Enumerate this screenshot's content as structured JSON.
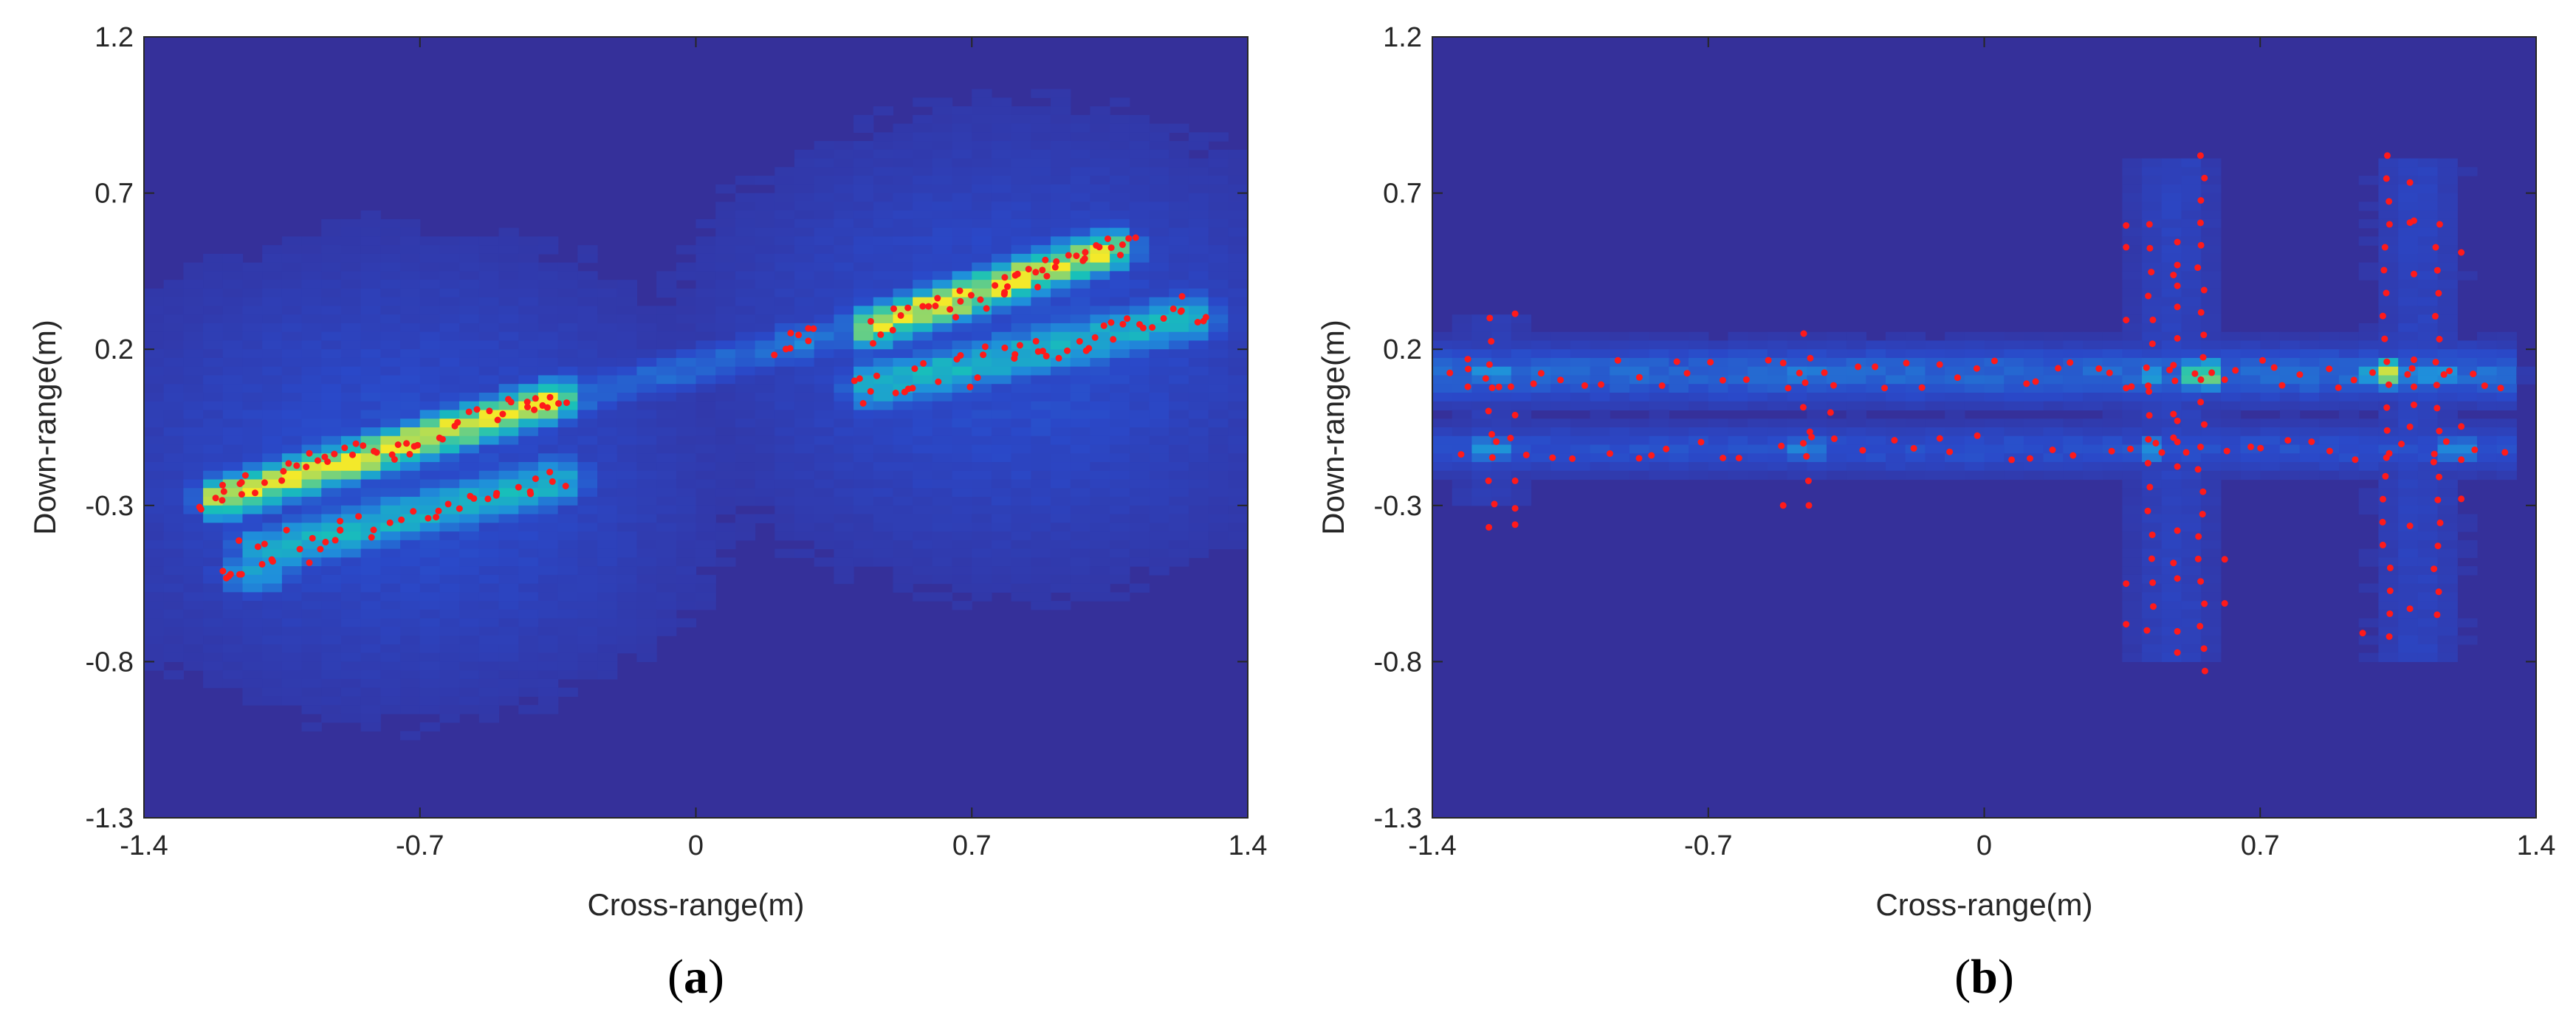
{
  "colors": {
    "background": "#35309a",
    "low": "#2a49c9",
    "mid": "#1f8fdb",
    "high": "#18c0b9",
    "peak": "#f3e92a",
    "points": "#ff1a1a"
  },
  "chart_data": [
    {
      "type": "heatmap",
      "caption_open": "(",
      "caption_letter": "a",
      "caption_close": ")",
      "xlabel": "Cross-range(m)",
      "ylabel": "Down-range(m)",
      "xlim": [
        -1.4,
        1.4
      ],
      "ylim": [
        -1.3,
        1.2
      ],
      "xticks": [
        -1.4,
        -0.7,
        0,
        0.7,
        1.4
      ],
      "xtick_labels": [
        "-1.4",
        "-0.7",
        "0",
        "0.7",
        "1.4"
      ],
      "yticks": [
        1.2,
        0.7,
        0.2,
        -0.3,
        -0.8,
        -1.3
      ],
      "ytick_labels": [
        "1.2",
        "0.7",
        "0.2",
        "-0.3",
        "-0.8",
        "-1.3"
      ],
      "intensity_features": [
        {
          "kind": "segment",
          "x1": -1.2,
          "y1": -0.28,
          "x2": -0.35,
          "y2": 0.04,
          "width": 0.05,
          "peak": 1.0
        },
        {
          "kind": "segment",
          "x1": -1.1,
          "y1": -0.45,
          "x2": -0.35,
          "y2": -0.22,
          "width": 0.06,
          "peak": 0.62
        },
        {
          "kind": "segment",
          "x1": 0.45,
          "y1": 0.27,
          "x2": 1.05,
          "y2": 0.52,
          "width": 0.05,
          "peak": 1.0
        },
        {
          "kind": "segment",
          "x1": 0.45,
          "y1": 0.08,
          "x2": 1.25,
          "y2": 0.3,
          "width": 0.06,
          "peak": 0.62
        },
        {
          "kind": "segment",
          "x1": -0.35,
          "y1": 0.04,
          "x2": 0.45,
          "y2": 0.27,
          "width": 0.05,
          "peak": 0.32
        },
        {
          "kind": "blob",
          "x": -1.12,
          "y": -0.52,
          "rx": 0.07,
          "ry": 0.05,
          "peak": 0.55
        },
        {
          "kind": "blob",
          "x": 0.25,
          "y": 0.22,
          "rx": 0.06,
          "ry": 0.05,
          "peak": 0.45
        },
        {
          "kind": "blob",
          "x": -0.75,
          "y": -0.2,
          "rx": 0.55,
          "ry": 0.5,
          "peak": 0.22
        },
        {
          "kind": "blob",
          "x": 0.8,
          "y": 0.2,
          "rx": 0.55,
          "ry": 0.5,
          "peak": 0.22
        }
      ],
      "point_groups": [
        {
          "x1": -1.25,
          "y1": -0.28,
          "x2": -0.33,
          "y2": 0.06,
          "n": 34,
          "spread": 0.035
        },
        {
          "x1": -1.15,
          "y1": -0.45,
          "x2": -0.33,
          "y2": -0.2,
          "n": 26,
          "spread": 0.045
        },
        {
          "x1": 0.45,
          "y1": 0.27,
          "x2": 1.12,
          "y2": 0.55,
          "n": 28,
          "spread": 0.035
        },
        {
          "x1": 0.4,
          "y1": 0.06,
          "x2": 1.3,
          "y2": 0.32,
          "n": 30,
          "spread": 0.045
        },
        {
          "x1": 0.2,
          "y1": 0.2,
          "x2": 0.3,
          "y2": 0.26,
          "n": 5,
          "spread": 0.02
        },
        {
          "x1": -1.2,
          "y1": -0.55,
          "x2": -1.08,
          "y2": -0.48,
          "n": 5,
          "spread": 0.02
        }
      ]
    },
    {
      "type": "heatmap",
      "caption_open": "(",
      "caption_letter": "b",
      "caption_close": ")",
      "xlabel": "Cross-range(m)",
      "ylabel": "Down-range(m)",
      "xlim": [
        -1.4,
        1.4
      ],
      "ylim": [
        -1.3,
        1.2
      ],
      "xticks": [
        -1.4,
        -0.7,
        0,
        0.7,
        1.4
      ],
      "xtick_labels": [
        "-1.4",
        "-0.7",
        "0",
        "0.7",
        "1.4"
      ],
      "yticks": [
        1.2,
        0.7,
        0.2,
        -0.3,
        -0.8,
        -1.3
      ],
      "ytick_labels": [
        "1.2",
        "0.7",
        "0.2",
        "-0.3",
        "-0.8",
        "-1.3"
      ],
      "intensity_features": [
        {
          "kind": "hband",
          "y": 0.12,
          "height": 0.07,
          "x1": -1.4,
          "x2": 1.35,
          "peak": 0.3
        },
        {
          "kind": "hband",
          "y": -0.12,
          "height": 0.06,
          "x1": -1.4,
          "x2": 1.35,
          "peak": 0.22
        },
        {
          "kind": "vband",
          "x": 0.48,
          "width": 0.09,
          "y1": -0.8,
          "y2": 0.8,
          "peak": 0.15
        },
        {
          "kind": "vband",
          "x": 1.1,
          "width": 0.09,
          "y1": -0.8,
          "y2": 0.8,
          "peak": 0.15
        },
        {
          "kind": "vband",
          "x": -1.25,
          "width": 0.08,
          "y1": -0.3,
          "y2": 0.3,
          "peak": 0.12
        },
        {
          "kind": "blob",
          "x": 0.55,
          "y": 0.12,
          "rx": 0.04,
          "ry": 0.035,
          "peak": 1.0
        },
        {
          "kind": "blob",
          "x": 1.02,
          "y": 0.12,
          "rx": 0.04,
          "ry": 0.035,
          "peak": 1.0
        },
        {
          "kind": "blob",
          "x": 0.42,
          "y": 0.12,
          "rx": 0.04,
          "ry": 0.035,
          "peak": 0.55
        },
        {
          "kind": "blob",
          "x": 1.15,
          "y": 0.12,
          "rx": 0.04,
          "ry": 0.035,
          "peak": 0.55
        },
        {
          "kind": "blob",
          "x": 0.42,
          "y": -0.12,
          "rx": 0.04,
          "ry": 0.035,
          "peak": 0.5
        },
        {
          "kind": "blob",
          "x": 1.2,
          "y": -0.12,
          "rx": 0.04,
          "ry": 0.035,
          "peak": 0.5
        },
        {
          "kind": "blob",
          "x": 1.3,
          "y": 0.12,
          "rx": 0.04,
          "ry": 0.035,
          "peak": 0.45
        },
        {
          "kind": "blob",
          "x": -1.25,
          "y": 0.12,
          "rx": 0.05,
          "ry": 0.035,
          "peak": 0.5
        },
        {
          "kind": "blob",
          "x": -1.25,
          "y": -0.12,
          "rx": 0.05,
          "ry": 0.035,
          "peak": 0.5
        },
        {
          "kind": "blob",
          "x": -0.45,
          "y": 0.12,
          "rx": 0.04,
          "ry": 0.035,
          "peak": 0.45
        },
        {
          "kind": "blob",
          "x": -0.45,
          "y": -0.12,
          "rx": 0.04,
          "ry": 0.035,
          "peak": 0.45
        },
        {
          "kind": "blob",
          "x": 0.3,
          "y": 0.12,
          "rx": 0.04,
          "ry": 0.035,
          "peak": 0.4
        }
      ],
      "point_rows": [
        {
          "y": 0.12,
          "x1": -1.4,
          "x2": 1.35,
          "n": 60
        },
        {
          "y": -0.12,
          "x1": -1.35,
          "x2": 1.35,
          "n": 45
        }
      ],
      "point_columns": [
        {
          "x": 0.42,
          "y1": -0.7,
          "y2": 0.6,
          "n": 18
        },
        {
          "x": 0.55,
          "y1": -0.83,
          "y2": 0.82,
          "n": 24
        },
        {
          "x": 1.02,
          "y1": -0.72,
          "y2": 0.82,
          "n": 22
        },
        {
          "x": 1.15,
          "y1": -0.65,
          "y2": 0.6,
          "n": 18
        },
        {
          "x": -1.25,
          "y1": -0.37,
          "y2": 0.3,
          "n": 10
        },
        {
          "x": -0.45,
          "y1": -0.3,
          "y2": 0.25,
          "n": 8
        }
      ]
    }
  ]
}
